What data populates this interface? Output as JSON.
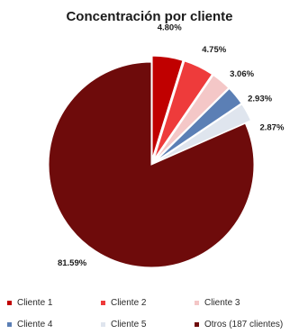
{
  "chart_data": {
    "type": "pie",
    "title": "Concentración por cliente",
    "categories": [
      "Cliente 1",
      "Cliente 2",
      "Cliente 3",
      "Cliente 4",
      "Cliente 5",
      "Otros (187 clientes)"
    ],
    "values": [
      4.8,
      4.75,
      3.06,
      2.93,
      2.87,
      81.59
    ],
    "data_labels": [
      "4.80%",
      "4.75%",
      "3.06%",
      "2.93%",
      "2.87%",
      "81.59%"
    ],
    "colors": [
      "#c00000",
      "#ee3b3b",
      "#f4c7c7",
      "#5b7fb5",
      "#dfe5ee",
      "#6e0b0b"
    ],
    "legend_position": "bottom"
  }
}
